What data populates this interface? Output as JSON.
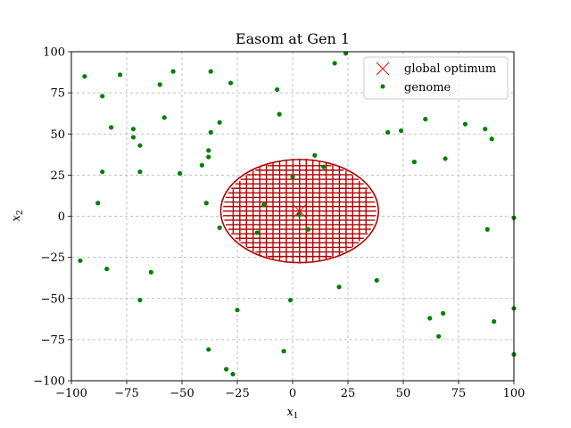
{
  "chart_data": {
    "type": "scatter",
    "title": "Easom at Gen 1",
    "xlabel": "x",
    "xlabel_sub": "1",
    "ylabel": "x",
    "ylabel_sub": "2",
    "xlim": [
      -100,
      100
    ],
    "ylim": [
      -100,
      100
    ],
    "xticks": [
      -100,
      -75,
      -50,
      -25,
      0,
      25,
      50,
      75,
      100
    ],
    "yticks": [
      -100,
      -75,
      -50,
      -25,
      0,
      25,
      50,
      75,
      100
    ],
    "grid": true,
    "legend_position": "top-right",
    "colors": {
      "optimum": "#ff0000",
      "genome": "#008000",
      "contour": "#b30000",
      "grid": "#b0b0b0"
    },
    "contour": {
      "center": [
        3.14,
        3.14
      ],
      "extent": 33
    },
    "series": [
      {
        "name": "global optimum",
        "marker": "x",
        "points": [
          [
            3.14,
            3.14
          ]
        ]
      },
      {
        "name": "genome",
        "marker": "dot",
        "points": [
          [
            -94,
            85
          ],
          [
            -78,
            86
          ],
          [
            -54,
            88
          ],
          [
            -37,
            88
          ],
          [
            -28,
            81
          ],
          [
            -60,
            80
          ],
          [
            -86,
            73
          ],
          [
            -7,
            77
          ],
          [
            -6,
            62
          ],
          [
            -58,
            60
          ],
          [
            -33,
            57
          ],
          [
            -72,
            53
          ],
          [
            -82,
            54
          ],
          [
            -37,
            51
          ],
          [
            -72,
            48
          ],
          [
            -69,
            43
          ],
          [
            -38,
            40
          ],
          [
            -38,
            36
          ],
          [
            -41,
            31
          ],
          [
            -86,
            27
          ],
          [
            -69,
            27
          ],
          [
            -51,
            26
          ],
          [
            -88,
            8
          ],
          [
            -39,
            8
          ],
          [
            -13,
            7
          ],
          [
            0,
            24
          ],
          [
            10,
            37
          ],
          [
            14,
            30
          ],
          [
            3,
            1
          ],
          [
            7,
            -8
          ],
          [
            -33,
            -7
          ],
          [
            -16,
            -10
          ],
          [
            -96,
            -27
          ],
          [
            -84,
            -32
          ],
          [
            -64,
            -34
          ],
          [
            -69,
            -51
          ],
          [
            -25,
            -57
          ],
          [
            -1,
            -51
          ],
          [
            -38,
            -81
          ],
          [
            -4,
            -82
          ],
          [
            -30,
            -93
          ],
          [
            -27,
            -96
          ],
          [
            19,
            93
          ],
          [
            24,
            99
          ],
          [
            43,
            51
          ],
          [
            49,
            52
          ],
          [
            60,
            59
          ],
          [
            78,
            56
          ],
          [
            87,
            53
          ],
          [
            90,
            47
          ],
          [
            55,
            33
          ],
          [
            69,
            35
          ],
          [
            100,
            -1
          ],
          [
            88,
            -8
          ],
          [
            21,
            -43
          ],
          [
            38,
            -39
          ],
          [
            100,
            -56
          ],
          [
            62,
            -62
          ],
          [
            68,
            -59
          ],
          [
            66,
            -73
          ],
          [
            91,
            -64
          ],
          [
            100,
            -84
          ]
        ]
      }
    ]
  }
}
